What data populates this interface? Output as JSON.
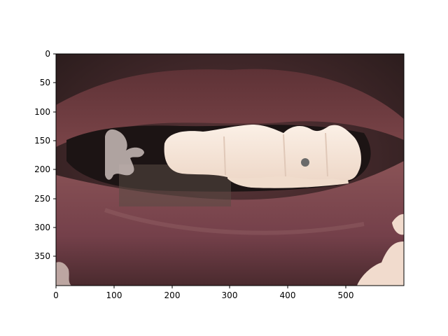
{
  "figure": {
    "description_free": true,
    "colors": {
      "background": "#ffffff",
      "axis": "#000000",
      "lip_dark": "#3a2426",
      "lip": "#6e3b3f",
      "lip_light": "#8c5a5c",
      "mouth_interior": "#1a1212",
      "tooth": "#f4e4d8",
      "tooth_shadow": "#d8c0b0",
      "mask": "#f2dccf",
      "gray_spot": "#6a6a6a"
    }
  },
  "axes": {
    "x_ticks": [
      "0",
      "100",
      "200",
      "300",
      "400",
      "500"
    ],
    "y_ticks": [
      "0",
      "50",
      "100",
      "150",
      "200",
      "250",
      "300",
      "350"
    ],
    "x_range": [
      0,
      600
    ],
    "y_range": [
      400,
      0
    ]
  }
}
